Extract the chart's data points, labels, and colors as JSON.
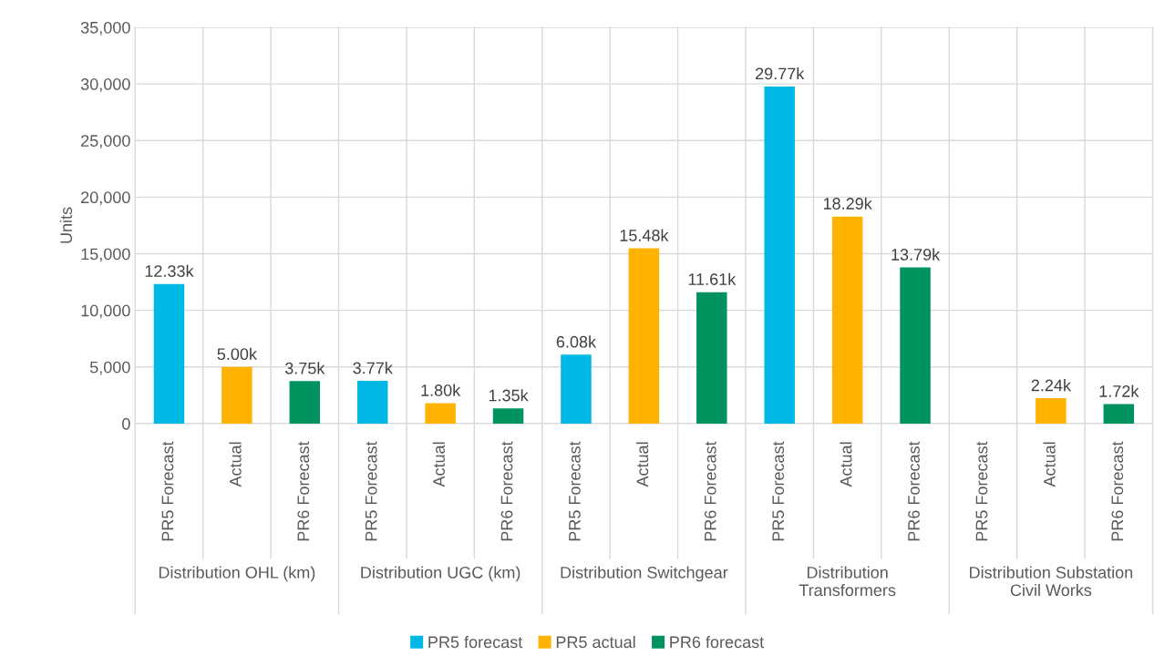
{
  "chart_data": {
    "type": "bar",
    "ylabel": "Units",
    "categories": [
      "PR5 Forecast",
      "Actual",
      "PR6 Forecast",
      "PR5 Forecast",
      "Actual",
      "PR6 Forecast",
      "PR5 Forecast",
      "Actual",
      "PR6 Forecast",
      "PR5 Forecast",
      "Actual",
      "PR6 Forecast",
      "PR5 Forecast",
      "Actual",
      "PR6 Forecast"
    ],
    "annotations": [
      "Distribution OHL (km)",
      "Distribution UGC (km)",
      "Distribution Switchgear",
      "Distribution\nTransformers",
      "Distribution Substation\nCivil Works"
    ],
    "series": [
      {
        "name": "PR5 forecast",
        "color": "#00b8e6",
        "values": [
          12330,
          null,
          null,
          3770,
          null,
          null,
          6080,
          null,
          null,
          29770,
          null,
          null,
          null,
          null,
          null
        ],
        "value_labels": [
          "12.33k",
          null,
          null,
          "3.77k",
          null,
          null,
          "6.08k",
          null,
          null,
          "29.77k",
          null,
          null,
          null,
          null,
          null
        ]
      },
      {
        "name": "PR5 actual",
        "color": "#ffb300",
        "values": [
          null,
          5000,
          null,
          null,
          1800,
          null,
          null,
          15480,
          null,
          null,
          18290,
          null,
          null,
          2240,
          null
        ],
        "value_labels": [
          null,
          "5.00k",
          null,
          null,
          "1.80k",
          null,
          null,
          "15.48k",
          null,
          null,
          "18.29k",
          null,
          null,
          "2.24k",
          null
        ]
      },
      {
        "name": "PR6 forecast",
        "color": "#00935f",
        "values": [
          null,
          null,
          3750,
          null,
          null,
          1350,
          null,
          null,
          11610,
          null,
          null,
          13790,
          null,
          null,
          1720
        ],
        "value_labels": [
          null,
          null,
          "3.75k",
          null,
          null,
          "1.35k",
          null,
          null,
          "11.61k",
          null,
          null,
          "13.79k",
          null,
          null,
          "1.72k"
        ]
      }
    ],
    "ylim": [
      0,
      35000
    ],
    "yticks": [
      {
        "value": 0,
        "label": "0"
      },
      {
        "value": 5000,
        "label": "5,000"
      },
      {
        "value": 10000,
        "label": "10,000"
      },
      {
        "value": 15000,
        "label": "15,000"
      },
      {
        "value": 20000,
        "label": "20,000"
      },
      {
        "value": 25000,
        "label": "25,000"
      },
      {
        "value": 30000,
        "label": "30,000"
      },
      {
        "value": 35000,
        "label": "35,000"
      }
    ],
    "grid": true,
    "legend": "bottom"
  }
}
